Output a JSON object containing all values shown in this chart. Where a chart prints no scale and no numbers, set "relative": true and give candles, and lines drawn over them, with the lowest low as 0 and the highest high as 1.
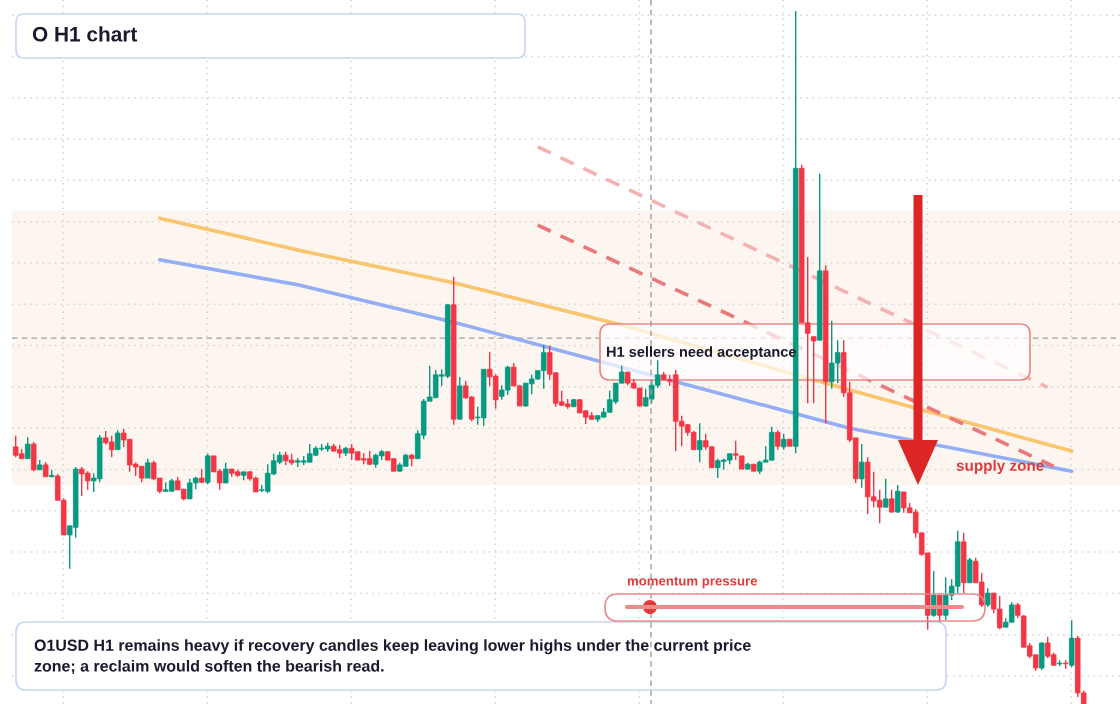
{
  "chart_data": {
    "type": "candlestick",
    "title": "O H1 chart",
    "relative": true,
    "grid": true,
    "tick_labels": false,
    "categories": [
      null,
      null,
      null,
      null,
      null,
      null,
      null,
      null,
      null,
      null,
      null,
      null,
      null,
      null,
      null,
      null,
      null,
      null,
      null,
      null,
      null,
      null,
      null,
      null,
      null,
      null,
      null,
      null,
      null,
      null,
      null,
      null,
      null,
      null,
      null,
      null,
      null,
      null,
      null,
      null,
      null,
      null,
      null,
      null,
      null,
      null,
      null,
      null,
      null,
      null,
      null,
      null,
      null,
      null,
      null,
      null,
      null,
      null,
      null,
      null,
      null,
      null,
      null,
      null,
      null,
      null,
      null,
      null,
      null,
      null,
      null,
      null,
      null,
      null,
      null,
      null,
      null,
      null,
      null,
      null,
      null,
      null,
      null,
      null,
      null,
      null,
      null,
      null,
      null,
      null,
      null,
      null,
      null,
      null,
      null,
      null,
      null,
      null,
      null,
      null,
      null,
      null,
      null,
      null,
      null,
      null,
      null,
      null,
      null,
      null,
      null,
      null,
      null,
      null,
      null,
      null,
      null,
      null,
      null,
      null,
      null,
      null,
      null,
      null,
      null,
      null,
      null,
      null,
      null,
      null,
      null,
      null,
      null,
      null,
      null,
      null,
      null,
      null,
      null,
      null,
      null,
      null,
      null,
      null,
      null,
      null,
      null,
      null,
      null,
      null,
      null,
      null,
      null,
      null,
      null,
      null,
      null,
      null,
      null,
      null,
      null,
      null,
      null,
      null,
      null,
      null,
      null,
      null,
      null,
      null,
      null,
      null,
      null,
      null,
      null,
      null,
      null,
      null,
      null
    ],
    "ohlc": [
      [
        0.371,
        0.387,
        0.356,
        0.359
      ],
      [
        0.361,
        0.368,
        0.354,
        0.354
      ],
      [
        0.354,
        0.385,
        0.354,
        0.375
      ],
      [
        0.375,
        0.378,
        0.336,
        0.338
      ],
      [
        0.338,
        0.352,
        0.338,
        0.345
      ],
      [
        0.345,
        0.349,
        0.328,
        0.328
      ],
      [
        0.328,
        0.338,
        0.327,
        0.33
      ],
      [
        0.329,
        0.332,
        0.294,
        0.294
      ],
      [
        0.294,
        0.297,
        0.244,
        0.244
      ],
      [
        0.244,
        0.258,
        0.195,
        0.257
      ],
      [
        0.255,
        0.342,
        0.24,
        0.339
      ],
      [
        0.339,
        0.342,
        0.3,
        0.332
      ],
      [
        0.333,
        0.336,
        0.309,
        0.322
      ],
      [
        0.322,
        0.333,
        0.306,
        0.326
      ],
      [
        0.325,
        0.388,
        0.32,
        0.384
      ],
      [
        0.384,
        0.394,
        0.374,
        0.377
      ],
      [
        0.378,
        0.387,
        0.356,
        0.367
      ],
      [
        0.367,
        0.395,
        0.367,
        0.391
      ],
      [
        0.391,
        0.397,
        0.371,
        0.381
      ],
      [
        0.382,
        0.382,
        0.335,
        0.345
      ],
      [
        0.346,
        0.349,
        0.329,
        0.342
      ],
      [
        0.343,
        0.343,
        0.32,
        0.326
      ],
      [
        0.326,
        0.354,
        0.326,
        0.348
      ],
      [
        0.348,
        0.351,
        0.323,
        0.325
      ],
      [
        0.326,
        0.326,
        0.304,
        0.307
      ],
      [
        0.307,
        0.32,
        0.306,
        0.309
      ],
      [
        0.307,
        0.325,
        0.307,
        0.322
      ],
      [
        0.322,
        0.328,
        0.309,
        0.309
      ],
      [
        0.31,
        0.31,
        0.294,
        0.296
      ],
      [
        0.296,
        0.325,
        0.296,
        0.319
      ],
      [
        0.319,
        0.328,
        0.31,
        0.326
      ],
      [
        0.326,
        0.339,
        0.319,
        0.32
      ],
      [
        0.32,
        0.361,
        0.317,
        0.358
      ],
      [
        0.358,
        0.358,
        0.335,
        0.335
      ],
      [
        0.336,
        0.339,
        0.309,
        0.319
      ],
      [
        0.319,
        0.348,
        0.319,
        0.339
      ],
      [
        0.339,
        0.339,
        0.328,
        0.333
      ],
      [
        0.335,
        0.338,
        0.328,
        0.33
      ],
      [
        0.33,
        0.335,
        0.323,
        0.335
      ],
      [
        0.335,
        0.336,
        0.322,
        0.325
      ],
      [
        0.326,
        0.328,
        0.306,
        0.306
      ],
      [
        0.308,
        0.316,
        0.306,
        0.309
      ],
      [
        0.307,
        0.346,
        0.304,
        0.333
      ],
      [
        0.332,
        0.361,
        0.33,
        0.351
      ],
      [
        0.349,
        0.364,
        0.346,
        0.359
      ],
      [
        0.359,
        0.364,
        0.345,
        0.351
      ],
      [
        0.352,
        0.361,
        0.345,
        0.348
      ],
      [
        0.349,
        0.355,
        0.342,
        0.351
      ],
      [
        0.349,
        0.358,
        0.345,
        0.351
      ],
      [
        0.349,
        0.375,
        0.349,
        0.361
      ],
      [
        0.359,
        0.372,
        0.358,
        0.369
      ],
      [
        0.368,
        0.375,
        0.365,
        0.369
      ],
      [
        0.368,
        0.377,
        0.364,
        0.372
      ],
      [
        0.372,
        0.375,
        0.364,
        0.365
      ],
      [
        0.367,
        0.374,
        0.355,
        0.362
      ],
      [
        0.362,
        0.371,
        0.358,
        0.369
      ],
      [
        0.369,
        0.375,
        0.352,
        0.362
      ],
      [
        0.364,
        0.364,
        0.352,
        0.352
      ],
      [
        0.354,
        0.362,
        0.346,
        0.352
      ],
      [
        0.354,
        0.365,
        0.345,
        0.346
      ],
      [
        0.346,
        0.361,
        0.341,
        0.359
      ],
      [
        0.358,
        0.367,
        0.352,
        0.364
      ],
      [
        0.364,
        0.364,
        0.352,
        0.352
      ],
      [
        0.354,
        0.354,
        0.336,
        0.336
      ],
      [
        0.336,
        0.348,
        0.335,
        0.345
      ],
      [
        0.343,
        0.361,
        0.343,
        0.359
      ],
      [
        0.359,
        0.361,
        0.343,
        0.354
      ],
      [
        0.354,
        0.395,
        0.354,
        0.39
      ],
      [
        0.388,
        0.44,
        0.382,
        0.437
      ],
      [
        0.437,
        0.488,
        0.437,
        0.443
      ],
      [
        0.442,
        0.482,
        0.442,
        0.475
      ],
      [
        0.473,
        0.483,
        0.459,
        0.475
      ],
      [
        0.473,
        0.577,
        0.47,
        0.576
      ],
      [
        0.576,
        0.616,
        0.403,
        0.411
      ],
      [
        0.411,
        0.472,
        0.411,
        0.459
      ],
      [
        0.459,
        0.466,
        0.44,
        0.442
      ],
      [
        0.443,
        0.444,
        0.408,
        0.411
      ],
      [
        0.413,
        0.429,
        0.403,
        0.414
      ],
      [
        0.413,
        0.483,
        0.401,
        0.483
      ],
      [
        0.483,
        0.508,
        0.459,
        0.472
      ],
      [
        0.473,
        0.476,
        0.426,
        0.439
      ],
      [
        0.444,
        0.46,
        0.439,
        0.453
      ],
      [
        0.453,
        0.488,
        0.446,
        0.486
      ],
      [
        0.486,
        0.492,
        0.459,
        0.459
      ],
      [
        0.459,
        0.46,
        0.43,
        0.43
      ],
      [
        0.43,
        0.463,
        0.429,
        0.463
      ],
      [
        0.462,
        0.475,
        0.447,
        0.469
      ],
      [
        0.469,
        0.481,
        0.468,
        0.481
      ],
      [
        0.481,
        0.518,
        0.455,
        0.507
      ],
      [
        0.507,
        0.517,
        0.468,
        0.476
      ],
      [
        0.478,
        0.478,
        0.429,
        0.434
      ],
      [
        0.436,
        0.452,
        0.43,
        0.431
      ],
      [
        0.433,
        0.44,
        0.426,
        0.429
      ],
      [
        0.429,
        0.44,
        0.429,
        0.439
      ],
      [
        0.439,
        0.44,
        0.42,
        0.42
      ],
      [
        0.423,
        0.424,
        0.404,
        0.414
      ],
      [
        0.416,
        0.421,
        0.41,
        0.411
      ],
      [
        0.411,
        0.417,
        0.407,
        0.416
      ],
      [
        0.414,
        0.427,
        0.413,
        0.421
      ],
      [
        0.421,
        0.452,
        0.421,
        0.439
      ],
      [
        0.436,
        0.463,
        0.433,
        0.463
      ],
      [
        0.463,
        0.488,
        0.463,
        0.479
      ],
      [
        0.479,
        0.479,
        0.46,
        0.463
      ],
      [
        0.463,
        0.469,
        0.455,
        0.456
      ],
      [
        0.456,
        0.456,
        0.429,
        0.43
      ],
      [
        0.43,
        0.455,
        0.429,
        0.442
      ],
      [
        0.44,
        0.468,
        0.434,
        0.46
      ],
      [
        0.46,
        0.496,
        0.456,
        0.475
      ],
      [
        0.475,
        0.479,
        0.467,
        0.468
      ],
      [
        0.468,
        0.475,
        0.459,
        0.466
      ],
      [
        0.475,
        0.482,
        0.365,
        0.408
      ],
      [
        0.408,
        0.416,
        0.372,
        0.401
      ],
      [
        0.403,
        0.404,
        0.387,
        0.392
      ],
      [
        0.392,
        0.394,
        0.367,
        0.367
      ],
      [
        0.367,
        0.405,
        0.349,
        0.38
      ],
      [
        0.38,
        0.39,
        0.367,
        0.371
      ],
      [
        0.371,
        0.372,
        0.341,
        0.341
      ],
      [
        0.341,
        0.354,
        0.326,
        0.351
      ],
      [
        0.35,
        0.354,
        0.338,
        0.352
      ],
      [
        0.352,
        0.362,
        0.346,
        0.361
      ],
      [
        0.361,
        0.38,
        0.352,
        0.359
      ],
      [
        0.358,
        0.358,
        0.339,
        0.339
      ],
      [
        0.339,
        0.348,
        0.338,
        0.346
      ],
      [
        0.346,
        0.346,
        0.336,
        0.336
      ],
      [
        0.336,
        0.351,
        0.332,
        0.349
      ],
      [
        0.349,
        0.372,
        0.349,
        0.352
      ],
      [
        0.352,
        0.4,
        0.351,
        0.392
      ],
      [
        0.392,
        0.395,
        0.367,
        0.372
      ],
      [
        0.371,
        0.39,
        0.367,
        0.382
      ],
      [
        0.382,
        0.382,
        0.372,
        0.372
      ],
      [
        0.372,
        1.0,
        0.362,
        0.773
      ],
      [
        0.773,
        0.778,
        0.55,
        0.55
      ],
      [
        0.55,
        0.645,
        0.434,
        0.535
      ],
      [
        0.53,
        0.53,
        0.434,
        0.524
      ],
      [
        0.525,
        0.765,
        0.525,
        0.625
      ],
      [
        0.625,
        0.633,
        0.405,
        0.465
      ],
      [
        0.465,
        0.553,
        0.455,
        0.492
      ],
      [
        0.492,
        0.525,
        0.463,
        0.507
      ],
      [
        0.507,
        0.525,
        0.443,
        0.449
      ],
      [
        0.449,
        0.465,
        0.378,
        0.381
      ],
      [
        0.384,
        0.384,
        0.319,
        0.325
      ],
      [
        0.325,
        0.375,
        0.312,
        0.349
      ],
      [
        0.349,
        0.356,
        0.274,
        0.299
      ],
      [
        0.299,
        0.335,
        0.284,
        0.293
      ],
      [
        0.294,
        0.309,
        0.261,
        0.284
      ],
      [
        0.284,
        0.325,
        0.284,
        0.296
      ],
      [
        0.296,
        0.309,
        0.276,
        0.277
      ],
      [
        0.277,
        0.316,
        0.276,
        0.307
      ],
      [
        0.306,
        0.306,
        0.276,
        0.283
      ],
      [
        0.283,
        0.29,
        0.276,
        0.276
      ],
      [
        0.277,
        0.281,
        0.24,
        0.247
      ],
      [
        0.247,
        0.247,
        0.214,
        0.216
      ],
      [
        0.218,
        0.218,
        0.107,
        0.128
      ],
      [
        0.128,
        0.192,
        0.126,
        0.157
      ],
      [
        0.157,
        0.157,
        0.118,
        0.128
      ],
      [
        0.128,
        0.183,
        0.121,
        0.157
      ],
      [
        0.157,
        0.18,
        0.15,
        0.17
      ],
      [
        0.17,
        0.25,
        0.16,
        0.234
      ],
      [
        0.234,
        0.247,
        0.16,
        0.175
      ],
      [
        0.175,
        0.211,
        0.175,
        0.208
      ],
      [
        0.206,
        0.211,
        0.175,
        0.175
      ],
      [
        0.176,
        0.189,
        0.14,
        0.143
      ],
      [
        0.143,
        0.167,
        0.14,
        0.16
      ],
      [
        0.16,
        0.16,
        0.131,
        0.137
      ],
      [
        0.137,
        0.156,
        0.108,
        0.11
      ],
      [
        0.111,
        0.124,
        0.11,
        0.118
      ],
      [
        0.118,
        0.147,
        0.118,
        0.143
      ],
      [
        0.143,
        0.146,
        0.124,
        0.128
      ],
      [
        0.127,
        0.128,
        0.082,
        0.082
      ],
      [
        0.084,
        0.088,
        0.066,
        0.069
      ],
      [
        0.071,
        0.071,
        0.048,
        0.052
      ],
      [
        0.052,
        0.089,
        0.049,
        0.088
      ],
      [
        0.088,
        0.097,
        0.066,
        0.069
      ],
      [
        0.071,
        0.074,
        0.055,
        0.056
      ],
      [
        0.058,
        0.063,
        0.055,
        0.059
      ],
      [
        0.059,
        0.063,
        0.051,
        0.058
      ],
      [
        0.056,
        0.121,
        0.053,
        0.095
      ],
      [
        0.095,
        0.098,
        0.01,
        0.016
      ],
      [
        0.016,
        0.019,
        0.0,
        0.0
      ]
    ],
    "colors": [
      "#f23645",
      "#f23645",
      "#089981",
      "#f23645",
      "#089981",
      "#f23645",
      "#089981",
      "#f23645",
      "#f23645",
      "#089981",
      "#089981",
      "#f23645",
      "#f23645",
      "#089981",
      "#089981",
      "#f23645",
      "#f23645",
      "#089981",
      "#f23645",
      "#f23645",
      "#f23645",
      "#f23645",
      "#089981",
      "#f23645",
      "#f23645",
      "#089981",
      "#089981",
      "#f23645",
      "#f23645",
      "#089981",
      "#089981",
      "#f23645",
      "#089981",
      "#f23645",
      "#f23645",
      "#089981",
      "#f23645",
      "#f23645",
      "#089981",
      "#f23645",
      "#f23645",
      "#089981",
      "#089981",
      "#089981",
      "#089981",
      "#f23645",
      "#f23645",
      "#089981",
      "#089981",
      "#089981",
      "#089981",
      "#089981",
      "#089981",
      "#f23645",
      "#f23645",
      "#089981",
      "#f23645",
      "#f23645",
      "#f23645",
      "#f23645",
      "#089981",
      "#089981",
      "#f23645",
      "#f23645",
      "#089981",
      "#089981",
      "#f23645",
      "#089981",
      "#089981",
      "#089981",
      "#089981",
      "#089981",
      "#089981",
      "#f23645",
      "#089981",
      "#f23645",
      "#f23645",
      "#089981",
      "#089981",
      "#f23645",
      "#f23645",
      "#089981",
      "#089981",
      "#f23645",
      "#f23645",
      "#089981",
      "#089981",
      "#089981",
      "#089981",
      "#f23645",
      "#f23645",
      "#f23645",
      "#f23645",
      "#089981",
      "#f23645",
      "#f23645",
      "#f23645",
      "#089981",
      "#089981",
      "#089981",
      "#089981",
      "#089981",
      "#f23645",
      "#f23645",
      "#f23645",
      "#089981",
      "#089981",
      "#089981",
      "#f23645",
      "#f23645",
      "#f23645",
      "#f23645",
      "#f23645",
      "#f23645",
      "#089981",
      "#f23645",
      "#f23645",
      "#089981",
      "#089981",
      "#089981",
      "#f23645",
      "#f23645",
      "#089981",
      "#f23645",
      "#089981",
      "#089981",
      "#089981",
      "#f23645",
      "#089981",
      "#f23645",
      "#089981",
      "#f23645",
      "#f23645",
      "#f23645",
      "#089981",
      "#f23645",
      "#089981",
      "#089981",
      "#f23645",
      "#f23645",
      "#f23645",
      "#089981",
      "#f23645",
      "#f23645",
      "#f23645",
      "#089981",
      "#f23645",
      "#089981",
      "#f23645",
      "#f23645",
      "#f23645",
      "#f23645",
      "#f23645",
      "#089981",
      "#f23645",
      "#089981",
      "#089981",
      "#089981",
      "#f23645",
      "#089981",
      "#f23645",
      "#f23645",
      "#089981",
      "#f23645",
      "#f23645",
      "#089981",
      "#089981",
      "#f23645",
      "#f23645",
      "#f23645",
      "#f23645",
      "#089981",
      "#f23645",
      "#f23645",
      "#089981",
      "#f23645",
      "#089981",
      "#f23645",
      "#f23645"
    ],
    "series": [
      {
        "type": "line",
        "color": "#f9c56e",
        "line_style": "solid",
        "values": [
          null,
          null,
          null,
          null,
          null,
          null,
          null,
          null,
          null,
          null,
          null,
          null,
          null,
          null,
          null,
          null,
          null,
          null,
          null,
          null,
          null,
          null,
          null,
          null,
          0.701,
          null,
          null,
          null,
          null,
          null,
          null,
          null,
          null,
          null,
          null,
          null,
          null,
          null,
          null,
          null,
          null,
          null,
          null,
          null,
          null,
          null,
          null,
          0.655,
          null,
          null,
          null,
          null,
          null,
          null,
          null,
          null,
          null,
          null,
          null,
          null,
          null,
          null,
          null,
          null,
          null,
          null,
          null,
          null,
          null,
          null,
          null,
          null,
          null,
          0.608,
          null,
          null,
          null,
          null,
          null,
          null,
          null,
          null,
          null,
          null,
          null,
          null,
          null,
          null,
          null,
          null,
          null,
          null,
          null,
          null,
          null,
          null,
          null,
          null,
          null,
          null,
          null,
          0.547,
          null,
          null,
          null,
          null,
          null,
          null,
          null,
          null,
          null,
          null,
          null,
          null,
          null,
          null,
          null,
          null,
          null,
          null,
          null,
          null,
          null,
          null,
          null,
          null,
          null,
          null,
          null,
          null,
          null,
          null,
          null,
          null,
          null,
          null,
          null,
          null,
          null,
          0.453,
          null,
          null,
          null,
          null,
          null,
          null,
          null,
          null,
          null,
          null,
          null,
          null,
          null,
          null,
          null,
          null,
          null,
          null,
          null,
          null,
          null,
          null,
          null,
          null,
          null,
          null,
          null,
          null,
          null,
          null,
          null,
          null,
          null,
          null,
          null,
          null,
          0.365,
          null,
          null
        ]
      },
      {
        "type": "line",
        "color": "#94aef5",
        "line_style": "solid",
        "values": [
          null,
          null,
          null,
          null,
          null,
          null,
          null,
          null,
          null,
          null,
          null,
          null,
          null,
          null,
          null,
          null,
          null,
          null,
          null,
          null,
          null,
          null,
          null,
          null,
          0.641,
          null,
          null,
          null,
          null,
          null,
          null,
          null,
          null,
          null,
          null,
          null,
          null,
          null,
          null,
          null,
          null,
          null,
          null,
          null,
          null,
          null,
          null,
          0.605,
          null,
          null,
          null,
          null,
          null,
          null,
          null,
          null,
          null,
          null,
          null,
          null,
          null,
          null,
          null,
          null,
          null,
          null,
          null,
          null,
          null,
          null,
          null,
          null,
          null,
          0.551,
          null,
          null,
          null,
          null,
          null,
          null,
          null,
          null,
          null,
          null,
          null,
          null,
          null,
          null,
          null,
          null,
          null,
          null,
          null,
          null,
          null,
          null,
          null,
          null,
          null,
          null,
          null,
          0.486,
          null,
          null,
          null,
          null,
          null,
          null,
          null,
          null,
          null,
          null,
          null,
          null,
          null,
          null,
          null,
          null,
          null,
          null,
          null,
          null,
          null,
          null,
          null,
          null,
          null,
          null,
          null,
          null,
          null,
          null,
          null,
          null,
          null,
          null,
          null,
          null,
          null,
          0.398,
          null,
          null,
          null,
          null,
          null,
          null,
          null,
          null,
          null,
          null,
          null,
          null,
          null,
          null,
          null,
          null,
          null,
          null,
          null,
          null,
          null,
          null,
          null,
          null,
          null,
          null,
          null,
          null,
          null,
          null,
          null,
          null,
          null,
          null,
          null,
          null,
          0.336,
          null,
          null
        ]
      },
      {
        "type": "line",
        "color": "#e9787b",
        "line_style": "dashed",
        "values": [
          null,
          null,
          null,
          null,
          null,
          null,
          null,
          null,
          null,
          null,
          null,
          null,
          null,
          null,
          null,
          null,
          null,
          null,
          null,
          null,
          null,
          null,
          null,
          null,
          null,
          null,
          null,
          null,
          null,
          null,
          null,
          null,
          null,
          null,
          null,
          null,
          null,
          null,
          null,
          null,
          null,
          null,
          null,
          null,
          null,
          null,
          null,
          null,
          null,
          null,
          null,
          null,
          null,
          null,
          null,
          null,
          null,
          null,
          null,
          null,
          null,
          null,
          null,
          null,
          null,
          null,
          null,
          null,
          null,
          null,
          null,
          null,
          null,
          null,
          null,
          null,
          null,
          null,
          null,
          null,
          null,
          null,
          null,
          null,
          null,
          null,
          null,
          0.691,
          null,
          null,
          null,
          null,
          null,
          null,
          null,
          null,
          null,
          null,
          null,
          null,
          null,
          null,
          null,
          null,
          null,
          null,
          null,
          null,
          null,
          null,
          null,
          null,
          null,
          null,
          null,
          null,
          null,
          null,
          null,
          null,
          null,
          null,
          null,
          null,
          null,
          null,
          null,
          null,
          null,
          null,
          null,
          null,
          null,
          null,
          null,
          null,
          null,
          null,
          null,
          null,
          null,
          null,
          null,
          null,
          null,
          null,
          null,
          null,
          null,
          null,
          null,
          null,
          null,
          null,
          null,
          null,
          null,
          null,
          null,
          null,
          null,
          null,
          null,
          null,
          null,
          null,
          null,
          null,
          null,
          null,
          null,
          null,
          null,
          0.343,
          null,
          null,
          null,
          null,
          null
        ]
      },
      {
        "type": "line",
        "color": "#f4b3b3",
        "line_style": "dashed",
        "values": [
          null,
          null,
          null,
          null,
          null,
          null,
          null,
          null,
          null,
          null,
          null,
          null,
          null,
          null,
          null,
          null,
          null,
          null,
          null,
          null,
          null,
          null,
          null,
          null,
          null,
          null,
          null,
          null,
          null,
          null,
          null,
          null,
          null,
          null,
          null,
          null,
          null,
          null,
          null,
          null,
          null,
          null,
          null,
          null,
          null,
          null,
          null,
          null,
          null,
          null,
          null,
          null,
          null,
          null,
          null,
          null,
          null,
          null,
          null,
          null,
          null,
          null,
          null,
          null,
          null,
          null,
          null,
          null,
          null,
          null,
          null,
          null,
          null,
          null,
          null,
          null,
          null,
          null,
          null,
          null,
          null,
          null,
          null,
          null,
          null,
          null,
          null,
          0.804,
          null,
          null,
          null,
          null,
          null,
          null,
          null,
          null,
          null,
          null,
          null,
          null,
          null,
          null,
          null,
          null,
          null,
          null,
          null,
          null,
          null,
          null,
          null,
          null,
          null,
          null,
          null,
          null,
          null,
          null,
          null,
          null,
          null,
          null,
          null,
          null,
          null,
          null,
          null,
          null,
          null,
          null,
          null,
          null,
          null,
          null,
          null,
          null,
          null,
          null,
          null,
          null,
          null,
          null,
          null,
          null,
          null,
          null,
          null,
          null,
          null,
          null,
          null,
          null,
          null,
          null,
          null,
          null,
          null,
          null,
          null,
          null,
          null,
          null,
          null,
          null,
          null,
          null,
          null,
          null,
          null,
          null,
          null,
          null,
          0.457,
          null,
          null,
          null,
          null,
          null,
          null
        ]
      }
    ],
    "ref_lines": [
      {
        "axis": "y",
        "value": 0.528,
        "color": "#9e9e9e",
        "line_style": "dashed"
      }
    ],
    "bands": [
      {
        "axis": "y",
        "from": 0.316,
        "to": 0.713,
        "label": "supply zone",
        "color": "#fdf6f0"
      }
    ],
    "annotations": [
      "H1 sellers need acceptance",
      "momentum pressure",
      "O1USD H1 remains heavy if recovery candles keep leaving lower highs under the current price\nzone; a reclaim would soften the bearish read."
    ]
  }
}
